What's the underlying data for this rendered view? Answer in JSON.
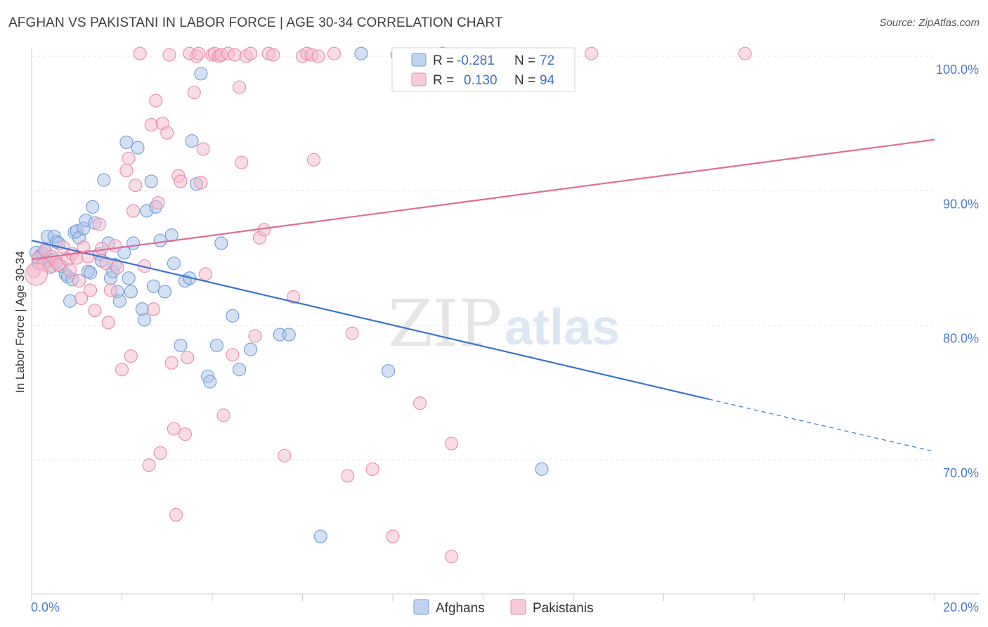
{
  "header": {
    "title": "AFGHAN VS PAKISTANI IN LABOR FORCE | AGE 30-34 CORRELATION CHART",
    "source": "Source: ZipAtlas.com"
  },
  "watermark": {
    "part1": "ZIP",
    "part2": "atlas"
  },
  "legend": {
    "rows": [
      {
        "r_label": "R =",
        "r_value": "-0.281",
        "n_label": "N =",
        "n_value": "72",
        "color": "#a9c4ec"
      },
      {
        "r_label": "R =",
        "r_value": "0.130",
        "n_label": "N =",
        "n_value": "94",
        "color": "#f6b9cd"
      }
    ]
  },
  "chart_data": {
    "type": "scatter",
    "title": "AFGHAN VS PAKISTANI IN LABOR FORCE | AGE 30-34 CORRELATION CHART",
    "ylabel": "In Labor Force | Age 30-34",
    "xlabel": "",
    "xlim": [
      0,
      20
    ],
    "ylim": [
      61,
      100
    ],
    "x_ticks": [
      "0.0%",
      "20.0%"
    ],
    "y_ticks": [
      {
        "value": 70,
        "label": "70.0%"
      },
      {
        "value": 80,
        "label": "80.0%"
      },
      {
        "value": 90,
        "label": "90.0%"
      },
      {
        "value": 100,
        "label": "100.0%"
      }
    ],
    "grid": true,
    "legend_position": "top-center",
    "series": [
      {
        "name": "Afghans",
        "color": "#a9c4ec",
        "stroke": "#6f9bd9",
        "trend": {
          "x0": 0,
          "y0": 86.3,
          "x1": 15,
          "y1": 74.5,
          "dash_to_x": 20,
          "dash_to_y": 70.6,
          "color": "#3a74d0"
        },
        "points": [
          [
            0.1,
            85.4
          ],
          [
            0.15,
            84.6
          ],
          [
            0.2,
            85.2
          ],
          [
            0.25,
            85.3
          ],
          [
            0.3,
            85.5
          ],
          [
            0.35,
            86.6
          ],
          [
            0.4,
            84.8
          ],
          [
            0.45,
            84.4
          ],
          [
            0.5,
            86.6
          ],
          [
            0.5,
            84.9
          ],
          [
            0.55,
            86.2
          ],
          [
            0.6,
            86.1
          ],
          [
            0.65,
            84.4
          ],
          [
            0.75,
            83.8
          ],
          [
            0.8,
            83.6
          ],
          [
            0.85,
            81.8
          ],
          [
            0.9,
            83.4
          ],
          [
            0.95,
            86.9
          ],
          [
            1.0,
            87.0
          ],
          [
            1.05,
            86.5
          ],
          [
            1.15,
            87.2
          ],
          [
            1.2,
            87.8
          ],
          [
            1.25,
            84.0
          ],
          [
            1.3,
            83.9
          ],
          [
            1.35,
            88.8
          ],
          [
            1.4,
            87.6
          ],
          [
            1.5,
            85.3
          ],
          [
            1.55,
            84.8
          ],
          [
            1.6,
            90.8
          ],
          [
            1.7,
            86.1
          ],
          [
            1.75,
            83.5
          ],
          [
            1.8,
            84.0
          ],
          [
            1.85,
            84.5
          ],
          [
            1.9,
            82.5
          ],
          [
            1.95,
            81.8
          ],
          [
            2.05,
            85.4
          ],
          [
            2.1,
            93.6
          ],
          [
            2.15,
            83.5
          ],
          [
            2.2,
            82.5
          ],
          [
            2.25,
            86.1
          ],
          [
            2.35,
            93.2
          ],
          [
            2.45,
            81.2
          ],
          [
            2.5,
            80.4
          ],
          [
            2.55,
            88.5
          ],
          [
            2.65,
            90.7
          ],
          [
            2.7,
            82.9
          ],
          [
            2.75,
            88.8
          ],
          [
            2.85,
            86.3
          ],
          [
            2.95,
            82.5
          ],
          [
            3.1,
            86.7
          ],
          [
            3.15,
            84.6
          ],
          [
            3.3,
            78.5
          ],
          [
            3.4,
            83.3
          ],
          [
            3.5,
            83.5
          ],
          [
            3.55,
            93.7
          ],
          [
            3.65,
            90.5
          ],
          [
            3.75,
            98.7
          ],
          [
            3.9,
            76.2
          ],
          [
            3.95,
            75.8
          ],
          [
            4.1,
            78.5
          ],
          [
            4.2,
            86.1
          ],
          [
            4.45,
            80.7
          ],
          [
            4.6,
            76.7
          ],
          [
            4.85,
            78.2
          ],
          [
            5.5,
            79.3
          ],
          [
            5.7,
            79.3
          ],
          [
            6.4,
            64.3
          ],
          [
            7.3,
            100.2
          ],
          [
            7.9,
            76.6
          ],
          [
            8.1,
            100.1
          ],
          [
            9.1,
            100.2
          ],
          [
            11.3,
            69.3
          ]
        ]
      },
      {
        "name": "Pakistanis",
        "color": "#f6b9cd",
        "stroke": "#e98aa8",
        "trend": {
          "x0": 0,
          "y0": 84.9,
          "x1": 20,
          "y1": 93.8,
          "color": "#e06d95"
        },
        "points": [
          [
            0.05,
            84.0
          ],
          [
            0.15,
            85.0
          ],
          [
            0.25,
            84.5
          ],
          [
            0.3,
            85.6
          ],
          [
            0.4,
            84.3
          ],
          [
            0.45,
            85.1
          ],
          [
            0.55,
            84.7
          ],
          [
            0.6,
            84.5
          ],
          [
            0.7,
            85.8
          ],
          [
            0.8,
            84.9
          ],
          [
            0.85,
            84.1
          ],
          [
            0.9,
            85.3
          ],
          [
            1.0,
            85.0
          ],
          [
            1.05,
            83.3
          ],
          [
            1.1,
            82.0
          ],
          [
            1.15,
            85.8
          ],
          [
            1.25,
            85.1
          ],
          [
            1.3,
            82.6
          ],
          [
            1.4,
            81.1
          ],
          [
            1.5,
            87.5
          ],
          [
            1.55,
            85.7
          ],
          [
            1.65,
            84.6
          ],
          [
            1.7,
            80.2
          ],
          [
            1.75,
            82.6
          ],
          [
            1.85,
            85.9
          ],
          [
            1.9,
            84.3
          ],
          [
            2.0,
            76.7
          ],
          [
            2.1,
            91.5
          ],
          [
            2.15,
            92.4
          ],
          [
            2.2,
            77.7
          ],
          [
            2.25,
            88.5
          ],
          [
            2.3,
            90.4
          ],
          [
            2.4,
            100.2
          ],
          [
            2.5,
            84.4
          ],
          [
            2.6,
            69.6
          ],
          [
            2.65,
            94.9
          ],
          [
            2.7,
            81.2
          ],
          [
            2.75,
            96.7
          ],
          [
            2.8,
            89.1
          ],
          [
            2.85,
            70.5
          ],
          [
            2.9,
            95.0
          ],
          [
            3.0,
            94.3
          ],
          [
            3.05,
            100.1
          ],
          [
            3.1,
            77.2
          ],
          [
            3.15,
            72.3
          ],
          [
            3.2,
            65.9
          ],
          [
            3.25,
            91.1
          ],
          [
            3.3,
            90.7
          ],
          [
            3.4,
            71.9
          ],
          [
            3.45,
            77.6
          ],
          [
            3.5,
            100.2
          ],
          [
            3.6,
            97.3
          ],
          [
            3.65,
            100.0
          ],
          [
            3.7,
            100.2
          ],
          [
            3.75,
            90.6
          ],
          [
            3.8,
            93.1
          ],
          [
            3.85,
            83.8
          ],
          [
            4.0,
            100.1
          ],
          [
            4.05,
            100.2
          ],
          [
            4.15,
            100.0
          ],
          [
            4.2,
            100.1
          ],
          [
            4.25,
            73.3
          ],
          [
            4.35,
            100.2
          ],
          [
            4.45,
            77.8
          ],
          [
            4.5,
            100.1
          ],
          [
            4.6,
            97.7
          ],
          [
            4.65,
            92.1
          ],
          [
            4.75,
            100.0
          ],
          [
            4.85,
            100.2
          ],
          [
            4.95,
            79.2
          ],
          [
            5.05,
            86.5
          ],
          [
            5.15,
            87.1
          ],
          [
            5.25,
            100.2
          ],
          [
            5.35,
            100.1
          ],
          [
            5.6,
            70.3
          ],
          [
            5.8,
            82.1
          ],
          [
            6.0,
            100.0
          ],
          [
            6.1,
            100.2
          ],
          [
            6.2,
            100.1
          ],
          [
            6.25,
            92.3
          ],
          [
            6.35,
            100.0
          ],
          [
            6.7,
            100.2
          ],
          [
            7.0,
            68.8
          ],
          [
            7.1,
            79.4
          ],
          [
            7.55,
            69.3
          ],
          [
            8.0,
            64.3
          ],
          [
            8.2,
            100.1
          ],
          [
            8.6,
            74.2
          ],
          [
            9.3,
            62.8
          ],
          [
            9.3,
            71.2
          ],
          [
            10.1,
            100.1
          ],
          [
            12.4,
            100.2
          ],
          [
            15.8,
            100.2
          ],
          [
            0.1,
            83.8
          ]
        ]
      }
    ]
  }
}
